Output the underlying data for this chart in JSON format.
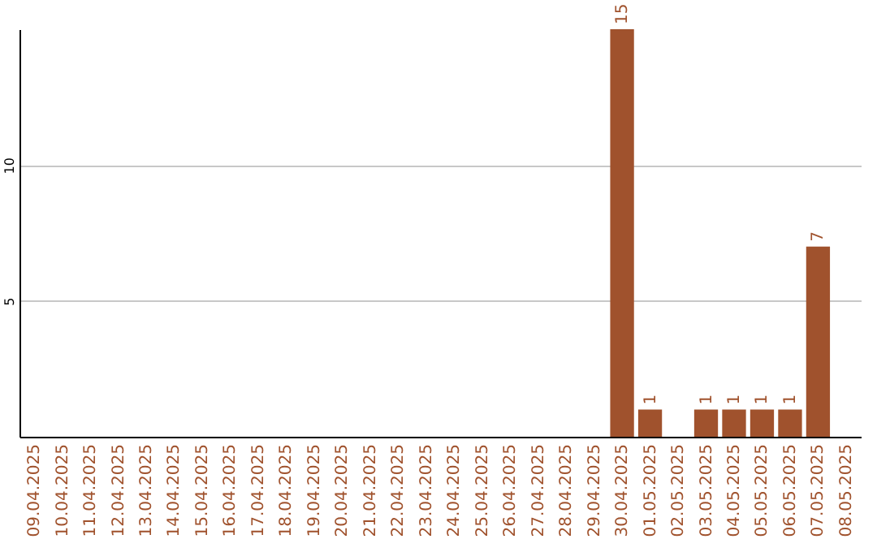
{
  "chart_data": {
    "type": "bar",
    "categories": [
      "09.04.2025",
      "10.04.2025",
      "11.04.2025",
      "12.04.2025",
      "13.04.2025",
      "14.04.2025",
      "15.04.2025",
      "16.04.2025",
      "17.04.2025",
      "18.04.2025",
      "19.04.2025",
      "20.04.2025",
      "21.04.2025",
      "22.04.2025",
      "23.04.2025",
      "24.04.2025",
      "25.04.2025",
      "26.04.2025",
      "27.04.2025",
      "28.04.2025",
      "29.04.2025",
      "30.04.2025",
      "01.05.2025",
      "02.05.2025",
      "03.05.2025",
      "04.05.2025",
      "05.05.2025",
      "06.05.2025",
      "07.05.2025",
      "08.05.2025"
    ],
    "values": [
      0,
      0,
      0,
      0,
      0,
      0,
      0,
      0,
      0,
      0,
      0,
      0,
      0,
      0,
      0,
      0,
      0,
      0,
      0,
      0,
      0,
      15,
      1,
      0,
      1,
      1,
      1,
      1,
      7,
      0
    ],
    "value_labels": [
      null,
      null,
      null,
      null,
      null,
      null,
      null,
      null,
      null,
      null,
      null,
      null,
      null,
      null,
      null,
      null,
      null,
      null,
      null,
      null,
      null,
      "15",
      "1",
      null,
      "1",
      "1",
      "1",
      "1",
      "7",
      null
    ],
    "color": "#a0522d",
    "ylim": [
      0,
      15
    ],
    "yticks": [
      5,
      10
    ],
    "grid": "y"
  }
}
